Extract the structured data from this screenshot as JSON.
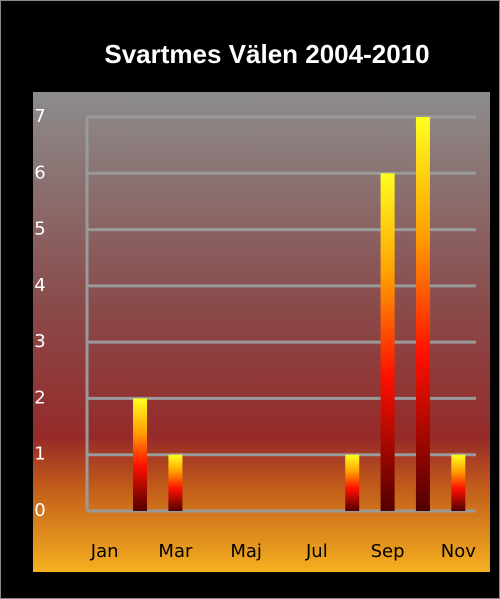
{
  "chart_data": {
    "type": "bar",
    "title": "Svartmes Välen 2004-2010",
    "categories": [
      "Jan",
      null,
      "Mar",
      null,
      "Maj",
      null,
      "Jul",
      null,
      "Sep",
      null,
      "Nov"
    ],
    "values": [
      0,
      2,
      1,
      0,
      0,
      0,
      0,
      1,
      6,
      7,
      1
    ],
    "ylim": [
      0,
      7
    ],
    "yticks": [
      0,
      1,
      2,
      3,
      4,
      5,
      6,
      7
    ],
    "grid": true
  }
}
